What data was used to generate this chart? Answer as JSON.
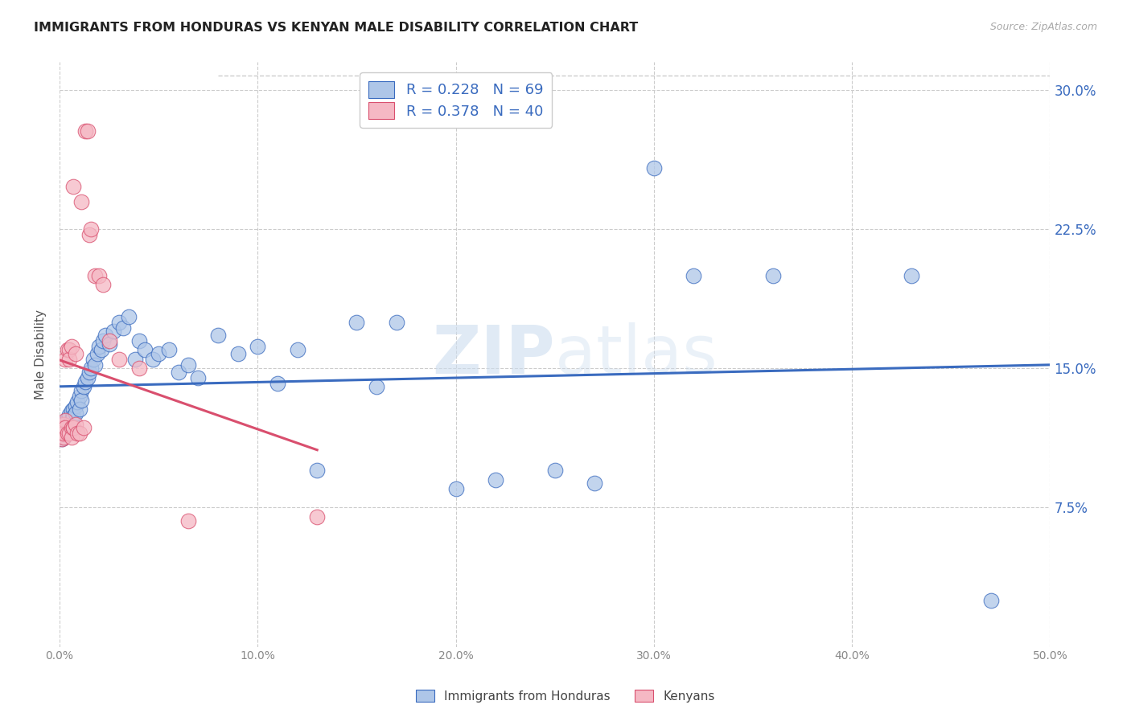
{
  "title": "IMMIGRANTS FROM HONDURAS VS KENYAN MALE DISABILITY CORRELATION CHART",
  "source": "Source: ZipAtlas.com",
  "ylabel": "Male Disability",
  "xlim": [
    0.0,
    0.5
  ],
  "ylim": [
    0.0,
    0.315
  ],
  "blue_R": 0.228,
  "blue_N": 69,
  "pink_R": 0.378,
  "pink_N": 40,
  "blue_color": "#aec6e8",
  "pink_color": "#f5b8c4",
  "blue_line_color": "#3a6bbf",
  "pink_line_color": "#d94f6e",
  "watermark_color": "#ccddef",
  "legend_label_blue": "Immigrants from Honduras",
  "legend_label_pink": "Kenyans",
  "ytick_vals": [
    0.075,
    0.15,
    0.225,
    0.3
  ],
  "ytick_labels": [
    "7.5%",
    "15.0%",
    "22.5%",
    "30.0%"
  ],
  "xtick_vals": [
    0.0,
    0.1,
    0.2,
    0.3,
    0.4,
    0.5
  ],
  "xtick_labels": [
    "0.0%",
    "10.0%",
    "20.0%",
    "30.0%",
    "40.0%",
    "50.0%"
  ],
  "blue_points_x": [
    0.001,
    0.001,
    0.001,
    0.002,
    0.002,
    0.002,
    0.003,
    0.003,
    0.003,
    0.004,
    0.004,
    0.005,
    0.005,
    0.005,
    0.006,
    0.006,
    0.007,
    0.007,
    0.008,
    0.008,
    0.009,
    0.01,
    0.01,
    0.011,
    0.011,
    0.012,
    0.013,
    0.014,
    0.015,
    0.016,
    0.017,
    0.018,
    0.019,
    0.02,
    0.021,
    0.022,
    0.023,
    0.025,
    0.027,
    0.03,
    0.032,
    0.035,
    0.038,
    0.04,
    0.043,
    0.047,
    0.05,
    0.055,
    0.06,
    0.065,
    0.07,
    0.08,
    0.09,
    0.1,
    0.11,
    0.12,
    0.13,
    0.15,
    0.16,
    0.17,
    0.2,
    0.22,
    0.25,
    0.27,
    0.3,
    0.32,
    0.36,
    0.43,
    0.47
  ],
  "blue_points_y": [
    0.12,
    0.115,
    0.112,
    0.118,
    0.113,
    0.116,
    0.121,
    0.117,
    0.114,
    0.119,
    0.123,
    0.125,
    0.12,
    0.118,
    0.127,
    0.122,
    0.128,
    0.124,
    0.13,
    0.126,
    0.132,
    0.135,
    0.128,
    0.138,
    0.133,
    0.14,
    0.143,
    0.145,
    0.148,
    0.15,
    0.155,
    0.152,
    0.158,
    0.162,
    0.16,
    0.165,
    0.168,
    0.163,
    0.17,
    0.175,
    0.172,
    0.178,
    0.155,
    0.165,
    0.16,
    0.155,
    0.158,
    0.16,
    0.148,
    0.152,
    0.145,
    0.168,
    0.158,
    0.162,
    0.142,
    0.16,
    0.095,
    0.175,
    0.14,
    0.175,
    0.085,
    0.09,
    0.095,
    0.088,
    0.258,
    0.2,
    0.2,
    0.2,
    0.025
  ],
  "pink_points_x": [
    0.001,
    0.001,
    0.001,
    0.001,
    0.002,
    0.002,
    0.002,
    0.002,
    0.003,
    0.003,
    0.003,
    0.004,
    0.004,
    0.005,
    0.005,
    0.005,
    0.006,
    0.006,
    0.006,
    0.007,
    0.007,
    0.007,
    0.008,
    0.008,
    0.009,
    0.01,
    0.011,
    0.012,
    0.013,
    0.014,
    0.015,
    0.016,
    0.018,
    0.02,
    0.022,
    0.025,
    0.03,
    0.04,
    0.065,
    0.13
  ],
  "pink_points_y": [
    0.115,
    0.118,
    0.112,
    0.116,
    0.12,
    0.118,
    0.113,
    0.115,
    0.122,
    0.118,
    0.155,
    0.16,
    0.115,
    0.16,
    0.155,
    0.115,
    0.162,
    0.118,
    0.113,
    0.118,
    0.248,
    0.118,
    0.12,
    0.158,
    0.115,
    0.115,
    0.24,
    0.118,
    0.278,
    0.278,
    0.222,
    0.225,
    0.2,
    0.2,
    0.195,
    0.165,
    0.155,
    0.15,
    0.068,
    0.07
  ]
}
